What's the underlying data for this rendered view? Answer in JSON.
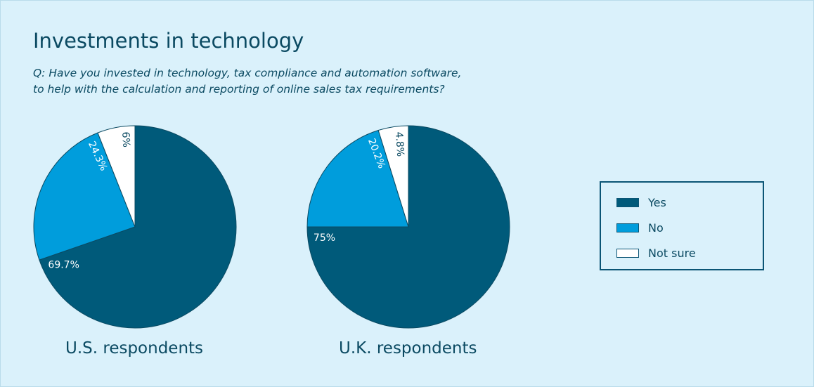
{
  "title": "Investments in technology",
  "subtitle_lines": [
    "Q: Have you invested in technology, tax compliance and automation software,",
    "to help with the calculation and reporting of online sales tax requirements?"
  ],
  "colors": {
    "Yes": "#005a7a",
    "No": "#009ddc",
    "Not sure": "#ffffff",
    "background": "#daf1fb"
  },
  "legend": {
    "placement": "right",
    "items": [
      "Yes",
      "No",
      "Not sure"
    ]
  },
  "chart_data": [
    {
      "type": "pie",
      "title": "U.S. respondents",
      "categories": [
        "Yes",
        "No",
        "Not sure"
      ],
      "values": [
        69.7,
        24.3,
        6
      ],
      "labels": [
        "69.7%",
        "24.3%",
        "6%"
      ]
    },
    {
      "type": "pie",
      "title": "U.K. respondents",
      "categories": [
        "Yes",
        "No",
        "Not sure"
      ],
      "values": [
        75,
        20.2,
        4.8
      ],
      "labels": [
        "75%",
        "20.2%",
        "4.8%"
      ]
    }
  ]
}
